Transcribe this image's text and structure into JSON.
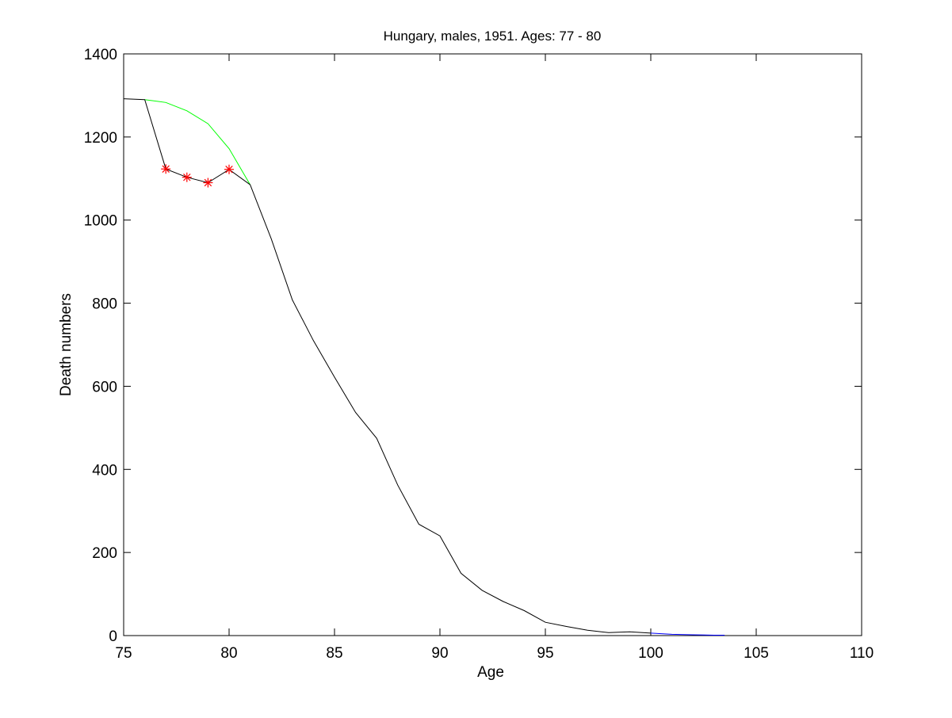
{
  "chart_data": {
    "type": "line",
    "title": "Hungary, males, 1951. Ages: 77 - 80",
    "xlabel": "Age",
    "ylabel": "Death numbers",
    "xlim": [
      75,
      110
    ],
    "ylim": [
      0,
      1400
    ],
    "xticks": [
      75,
      80,
      85,
      90,
      95,
      100,
      105,
      110
    ],
    "yticks": [
      0,
      200,
      400,
      600,
      800,
      1000,
      1200,
      1400
    ],
    "grid": false,
    "legend": "none",
    "series": [
      {
        "color": "#00ff00",
        "marker": "none",
        "x": [
          76,
          77,
          78,
          79,
          80,
          81
        ],
        "y": [
          1290,
          1283,
          1263,
          1232,
          1172,
          1085
        ]
      },
      {
        "color": "#000000",
        "marker": "none",
        "x": [
          75,
          76,
          77,
          78,
          79,
          80,
          81,
          82,
          83,
          84,
          85,
          86,
          87,
          88,
          89,
          90,
          91,
          92,
          93,
          94,
          95,
          96,
          97,
          98,
          99,
          100
        ],
        "y": [
          1292,
          1290,
          1123,
          1103,
          1090,
          1122,
          1085,
          955,
          808,
          710,
          622,
          537,
          475,
          362,
          268,
          240,
          150,
          109,
          82,
          60,
          32,
          22,
          13,
          7,
          9,
          6
        ]
      },
      {
        "color": "#0000ff",
        "marker": "none",
        "x": [
          100,
          101,
          102,
          103,
          103.5
        ],
        "y": [
          6,
          3,
          2,
          1,
          1
        ]
      },
      {
        "color": "#ff0000",
        "marker": "asterisk",
        "x": [
          77,
          78,
          79,
          80
        ],
        "y": [
          1123,
          1103,
          1090,
          1122
        ]
      }
    ]
  }
}
